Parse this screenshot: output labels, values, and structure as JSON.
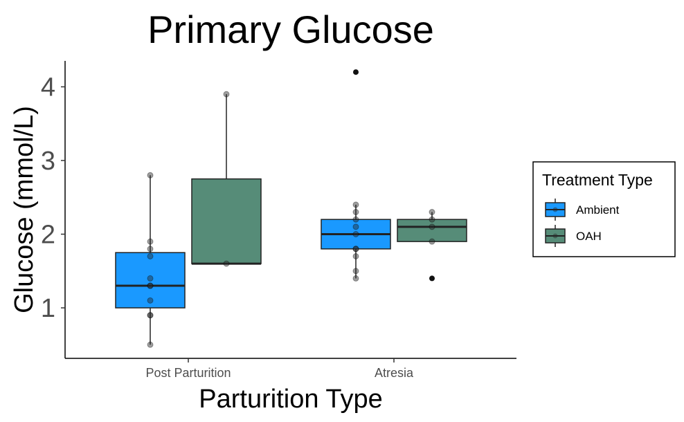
{
  "chart_data": {
    "type": "box",
    "title": "Primary Glucose",
    "xlabel": "Parturition Type",
    "ylabel": "Glucose (mmol/L)",
    "categories": [
      "Post Parturition",
      "Atresia"
    ],
    "yticks": [
      1,
      2,
      3,
      4
    ],
    "ylim": [
      0.38,
      4.38
    ],
    "grid": false,
    "legend": {
      "title": "Treatment Type",
      "position": "right"
    },
    "series": [
      {
        "name": "Ambient",
        "color": "#1a99ff",
        "boxes": [
          {
            "category": "Post Parturition",
            "min": 0.5,
            "q1": 1.0,
            "median": 1.3,
            "q3": 1.75,
            "max": 2.8,
            "points": [
              0.5,
              0.9,
              0.9,
              1.1,
              1.3,
              1.3,
              1.4,
              1.7,
              1.8,
              1.9,
              2.8
            ],
            "outliers": []
          },
          {
            "category": "Atresia",
            "min": 1.4,
            "q1": 1.8,
            "median": 2.0,
            "q3": 2.2,
            "max": 2.4,
            "points": [
              1.4,
              1.5,
              1.7,
              1.8,
              1.8,
              2.0,
              2.1,
              2.2,
              2.3,
              2.4
            ],
            "outliers": [
              4.2
            ]
          }
        ]
      },
      {
        "name": "OAH",
        "color": "#568c78",
        "boxes": [
          {
            "category": "Post Parturition",
            "min": 1.6,
            "q1": 1.6,
            "median": 1.6,
            "q3": 2.75,
            "max": 3.9,
            "points": [
              1.6,
              3.9
            ],
            "outliers": []
          },
          {
            "category": "Atresia",
            "min": 1.9,
            "q1": 1.9,
            "median": 2.1,
            "q3": 2.2,
            "max": 2.3,
            "points": [
              1.9,
              2.1,
              2.2,
              2.3
            ],
            "outliers": [
              1.4
            ]
          }
        ]
      }
    ]
  }
}
